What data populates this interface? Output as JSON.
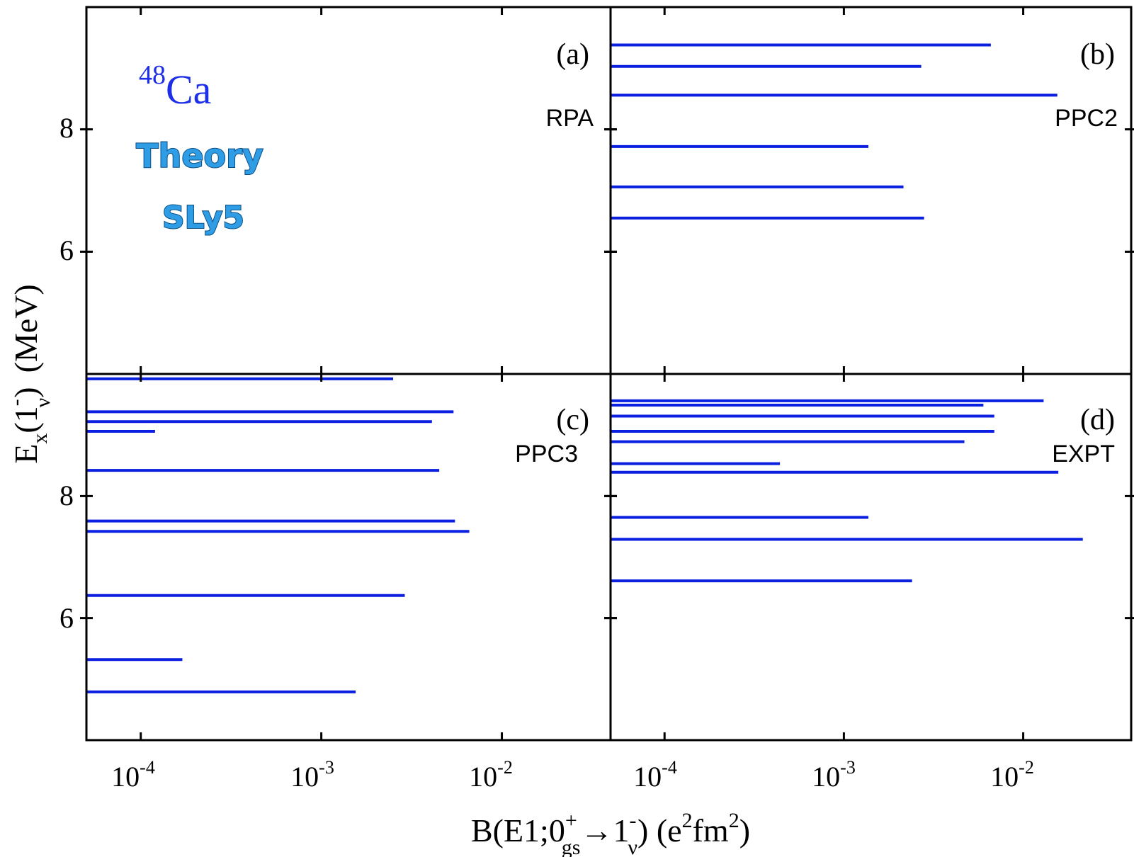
{
  "figure": {
    "nucleus_mass": "48",
    "nucleus_symbol": "Ca",
    "theory_label": "Theory",
    "interaction_label": "SLy5",
    "xlabel": {
      "prefix": "B(E1;0",
      "sup1": "+",
      "sub1": "gs",
      "arrow": "→1",
      "sup2": "-",
      "sub2": "ν",
      "unit_open": ") (e",
      "unit_sup": "2",
      "unit_mid": "fm",
      "unit_sup2": "2",
      "unit_close": ")"
    },
    "ylabel": {
      "prefix": "E",
      "sub1": "x",
      "mid": "(1",
      "sup": "-",
      "sub2": "ν",
      "close": ")",
      "unit": "(MeV)"
    },
    "bar_color": "#0b1fe0",
    "nucleus_color": "#1d2ee8"
  },
  "chart_data": [
    {
      "type": "bar",
      "orientation": "horizontal",
      "panel_tag": "(a)",
      "method": "RPA",
      "x_scale": "log",
      "xlim": [
        5e-05,
        0.04
      ],
      "ylim": [
        4.0,
        10.0
      ],
      "x_ticks": [
        {
          "value": 0.0001,
          "base": "10",
          "exp": "-4"
        },
        {
          "value": 0.001,
          "base": "10",
          "exp": "-3"
        },
        {
          "value": 0.01,
          "base": "10",
          "exp": "-2"
        }
      ],
      "y_ticks": [
        {
          "value": 6,
          "label": "6"
        },
        {
          "value": 8,
          "label": "8"
        }
      ],
      "states": []
    },
    {
      "type": "bar",
      "orientation": "horizontal",
      "panel_tag": "(b)",
      "method": "PPC2",
      "x_scale": "log",
      "xlim": [
        5e-05,
        0.04
      ],
      "ylim": [
        4.0,
        10.0
      ],
      "x_ticks": [
        {
          "value": 0.0001,
          "base": "10",
          "exp": "-4"
        },
        {
          "value": 0.001,
          "base": "10",
          "exp": "-3"
        },
        {
          "value": 0.01,
          "base": "10",
          "exp": "-2"
        }
      ],
      "y_ticks": [
        {
          "value": 6,
          "label": "6"
        },
        {
          "value": 8,
          "label": "8"
        }
      ],
      "states": [
        {
          "energy": 9.38,
          "B": 0.0066
        },
        {
          "energy": 9.03,
          "B": 0.0027
        },
        {
          "energy": 8.56,
          "B": 0.0155
        },
        {
          "energy": 7.72,
          "B": 0.00137
        },
        {
          "energy": 7.06,
          "B": 0.00215
        },
        {
          "energy": 6.55,
          "B": 0.0028
        }
      ]
    },
    {
      "type": "bar",
      "orientation": "horizontal",
      "panel_tag": "(c)",
      "method": "PPC3",
      "x_scale": "log",
      "xlim": [
        5e-05,
        0.04
      ],
      "ylim": [
        4.0,
        10.0
      ],
      "x_ticks": [
        {
          "value": 0.0001,
          "base": "10",
          "exp": "-4"
        },
        {
          "value": 0.001,
          "base": "10",
          "exp": "-3"
        },
        {
          "value": 0.01,
          "base": "10",
          "exp": "-2"
        }
      ],
      "y_ticks": [
        {
          "value": 6,
          "label": "6"
        },
        {
          "value": 8,
          "label": "8"
        }
      ],
      "states": [
        {
          "energy": 9.92,
          "B": 0.0025
        },
        {
          "energy": 9.38,
          "B": 0.0054
        },
        {
          "energy": 9.22,
          "B": 0.0041
        },
        {
          "energy": 9.06,
          "B": 0.00012
        },
        {
          "energy": 8.42,
          "B": 0.0045
        },
        {
          "energy": 7.59,
          "B": 0.0055
        },
        {
          "energy": 7.42,
          "B": 0.0066
        },
        {
          "energy": 6.37,
          "B": 0.0029
        },
        {
          "energy": 5.32,
          "B": 0.00017
        },
        {
          "energy": 4.79,
          "B": 0.00155
        }
      ]
    },
    {
      "type": "bar",
      "orientation": "horizontal",
      "panel_tag": "(d)",
      "method": "EXPT",
      "x_scale": "log",
      "xlim": [
        5e-05,
        0.04
      ],
      "ylim": [
        4.0,
        10.0
      ],
      "x_ticks": [
        {
          "value": 0.0001,
          "base": "10",
          "exp": "-4"
        },
        {
          "value": 0.001,
          "base": "10",
          "exp": "-3"
        },
        {
          "value": 0.01,
          "base": "10",
          "exp": "-2"
        }
      ],
      "y_ticks": [
        {
          "value": 6,
          "label": "6"
        },
        {
          "value": 8,
          "label": "8"
        }
      ],
      "states": [
        {
          "energy": 9.56,
          "B": 0.013
        },
        {
          "energy": 9.49,
          "B": 0.006
        },
        {
          "energy": 9.31,
          "B": 0.0069
        },
        {
          "energy": 9.06,
          "B": 0.0069
        },
        {
          "energy": 8.89,
          "B": 0.0047
        },
        {
          "energy": 8.53,
          "B": 0.00044
        },
        {
          "energy": 8.39,
          "B": 0.0157
        },
        {
          "energy": 7.65,
          "B": 0.00137
        },
        {
          "energy": 7.29,
          "B": 0.0215
        },
        {
          "energy": 6.61,
          "B": 0.0024
        }
      ]
    }
  ]
}
